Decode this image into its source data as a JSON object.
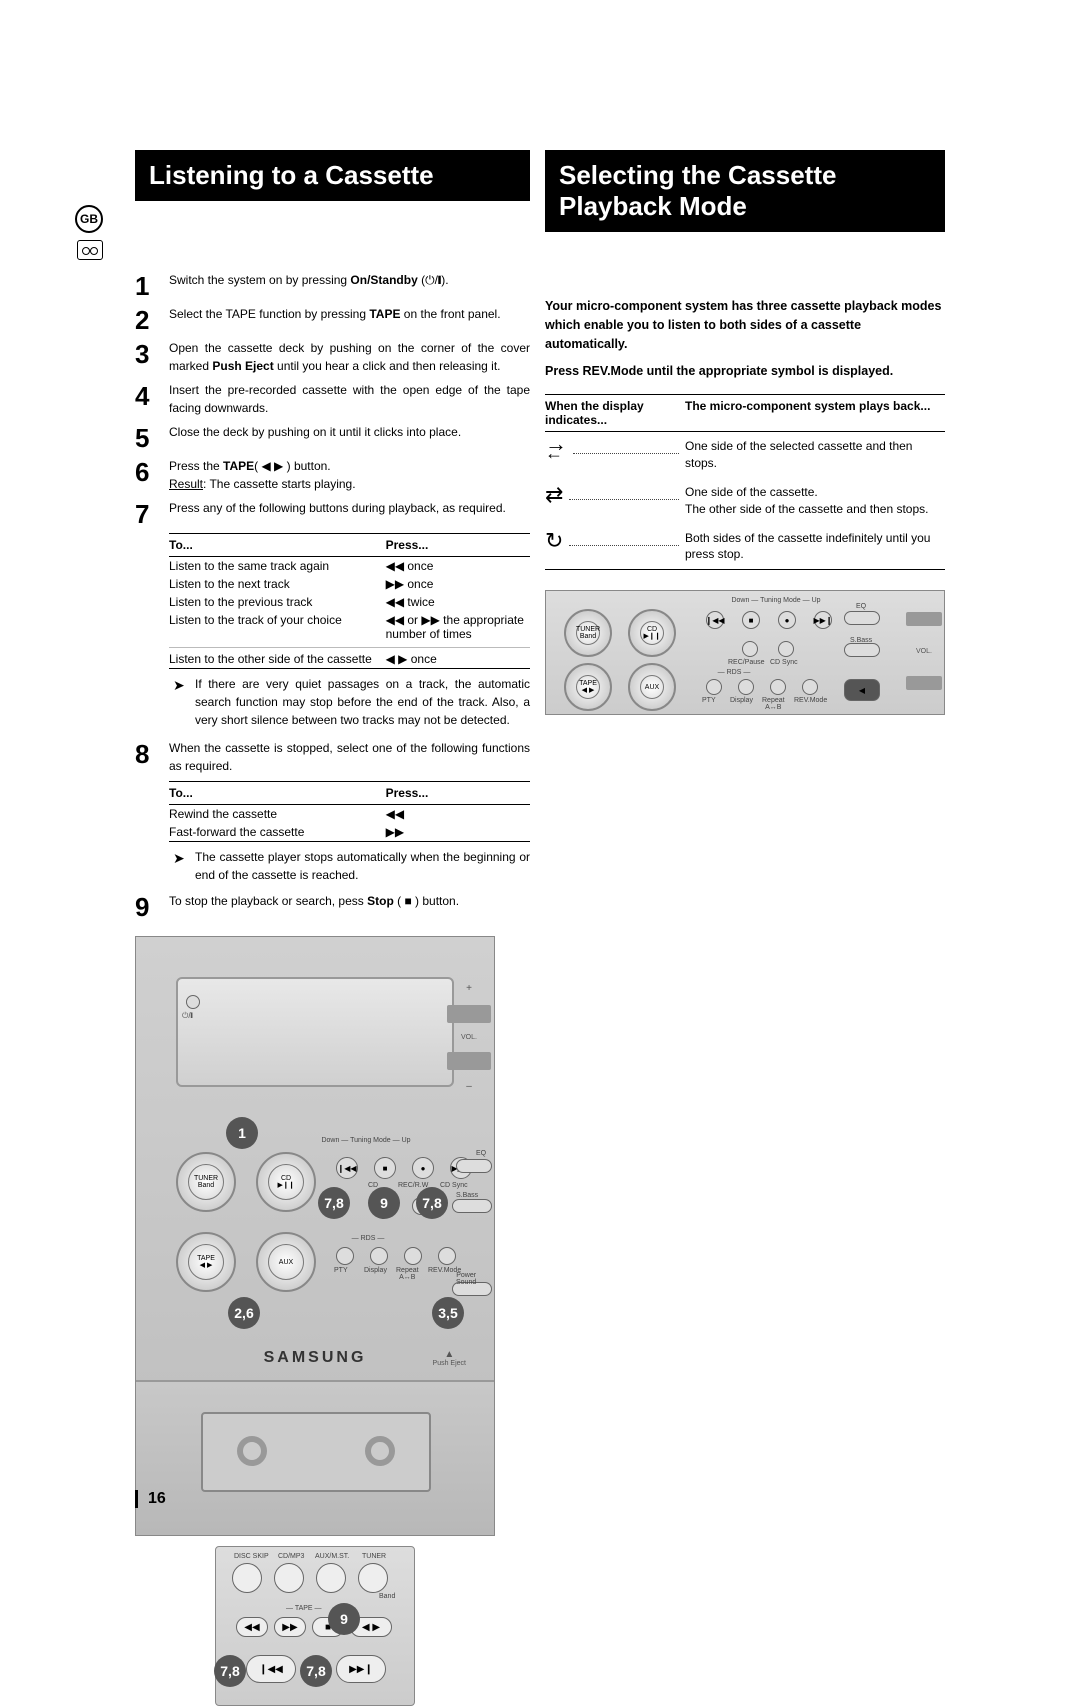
{
  "page_number": "16",
  "gb_label": "GB",
  "left": {
    "title": "Listening to a Cassette",
    "steps": {
      "s1": "Switch the system on by pressing <b>On/Standby</b> (⏻/❙).",
      "s2": "Select the TAPE function by pressing <b>TAPE</b> on the front panel.",
      "s3": "Open the cassette deck by pushing on the corner of the cover marked <b>Push Eject</b> until you hear a click and then releasing it.",
      "s4": "Insert the pre-recorded cassette with the open edge of the tape facing downwards.",
      "s5": "Close the deck by pushing on it until it clicks into place.",
      "s6": "Press the <b>TAPE</b>( ◀ ▶ ) button.<br><span class='underline'>Result</span>: The cassette starts playing.",
      "s7": "Press any of the following buttons during playback, as required.",
      "s8": "When the cassette is stopped, select one of the following functions as required.",
      "s9": "To stop the playback or search, pess <b>Stop</b> ( ■ ) button."
    },
    "table7": {
      "h1": "To...",
      "h2": "Press...",
      "r1c1": "Listen to the same track again",
      "r1c2": "◀◀  once",
      "r2c1": "Listen to the next track",
      "r2c2": "▶▶  once",
      "r3c1": "Listen to the previous track",
      "r3c2": "◀◀  twice",
      "r4c1": "Listen to the track of your choice",
      "r4c2": "◀◀ or ▶▶  the appropriate number of times",
      "r5c1": "Listen to the other side of the cassette",
      "r5c2": "◀ ▶  once"
    },
    "note7": "If there are very quiet passages on a track, the automatic search function may stop before the end of the track. Also, a very short silence between two tracks may not be detected.",
    "table8": {
      "h1": "To...",
      "h2": "Press...",
      "r1c1": "Rewind the cassette",
      "r1c2": "◀◀",
      "r2c1": "Fast-forward the cassette",
      "r2c2": "▶▶"
    },
    "note8": "The cassette player stops automatically when the beginning or end of the cassette is reached.",
    "device": {
      "knob_tuner_top": "TUNER",
      "knob_tuner_bot": "Band",
      "knob_cd_top": "CD",
      "knob_cd_bot": "▶❙❙",
      "knob_tape_top": "TAPE",
      "knob_tape_bot": "◀ ▶",
      "knob_aux": "AUX",
      "b_rew": "❙◀◀",
      "b_stop": "■",
      "b_recrw": "●",
      "b_ff": "▶▶❙",
      "l_rew": "",
      "l_stop": "CD",
      "l_recrw": "REC/R.W",
      "l_ff": "CD Sync",
      "l_eq": "EQ",
      "b_pty": "",
      "b_disp": "",
      "b_rep": "",
      "b_rev": "",
      "l_pty": "PTY",
      "l_disp": "Display",
      "l_rep": "Repeat\nA↔B",
      "l_rev": "REV.Mode",
      "l_rds": "RDS",
      "l_power": "Power\nSound",
      "l_sbass": "S.Bass",
      "l_tuning": "Down  —  Tuning Mode  —  Up",
      "brand": "SAMSUNG",
      "push_eject": "Push Eject",
      "callouts": {
        "c1": "1",
        "c26": "2,6",
        "c35": "3,5",
        "c78a": "7,8",
        "c78b": "7,8",
        "c9": "9"
      }
    },
    "remote": {
      "l_disc": "DISC SKIP",
      "l_cd": "CD/MP3",
      "l_aux": "AUX/M.ST.",
      "l_tuner": "TUNER",
      "l_band": "Band",
      "l_tape": "TAPE",
      "sym_rew": "◀◀",
      "sym_ff": "▶▶",
      "sym_stop": "■",
      "sym_play": "◀ ▶",
      "sym_prev": "❙◀◀",
      "sym_next": "▶▶❙",
      "callouts": {
        "c9": "9",
        "c78a": "7,8",
        "c78b": "7,8"
      }
    }
  },
  "right": {
    "title_l1": "Selecting the Cassette",
    "title_l2": "Playback Mode",
    "intro1": "Your micro-component system has three cassette playback modes which enable you to listen to both sides of a cassette automatically.",
    "intro2": "Press REV.Mode until the appropriate symbol is displayed.",
    "mode_h1": "When the display indicates...",
    "mode_h2": "The micro-component system plays back...",
    "modes": {
      "m1_sym": "⇄",
      "m1_desc": "One side of the selected cassette and then stops.",
      "m2_sym": "⇄",
      "m2_desc": "One side of the cassette.\nThe other side of the cassette and then stops.",
      "m3_sym": "↻",
      "m3_desc": "Both sides of the cassette indefinitely until you press stop."
    },
    "panel": {
      "l_tuning": "Down  —  Tuning Mode  —  Up",
      "knob_tuner_top": "TUNER",
      "knob_tuner_bot": "Band",
      "knob_cd_top": "CD",
      "knob_cd_bot": "▶❙❙",
      "knob_tape_top": "TAPE",
      "knob_tape_bot": "◀ ▶",
      "knob_aux": "AUX",
      "l_eq": "EQ",
      "l_recpause": "REC/Pause",
      "l_cdsync": "CD Sync",
      "l_sbass": "S.Bass",
      "l_pty": "PTY",
      "l_disp": "Display",
      "l_rep": "Repeat\nA↔B",
      "l_rev": "REV.Mode",
      "l_rds": "RDS"
    }
  },
  "colors": {
    "title_bg": "#000000",
    "title_fg": "#ffffff",
    "body_fg": "#000000",
    "callout_bg": "#555555",
    "device_bg": "#cccccc"
  }
}
